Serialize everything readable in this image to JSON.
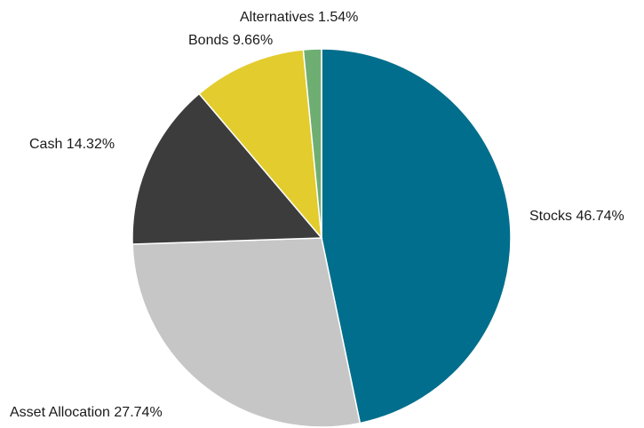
{
  "chart_data": {
    "type": "pie",
    "start_angle_deg": 0,
    "direction": "clockwise",
    "slices": [
      {
        "label": "Stocks",
        "value": 46.74,
        "label_text": "Stocks 46.74%",
        "color": "#006e8c",
        "label_side": "right"
      },
      {
        "label": "Asset Allocation",
        "value": 27.74,
        "label_text": "Asset Allocation 27.74%",
        "color": "#c6c6c6",
        "label_side": "left"
      },
      {
        "label": "Cash",
        "value": 14.32,
        "label_text": "Cash 14.32%",
        "color": "#3c3c3c",
        "label_side": "left"
      },
      {
        "label": "Bonds",
        "value": 9.66,
        "label_text": "Bonds 9.66%",
        "color": "#e3cc2e",
        "label_side": "left"
      },
      {
        "label": "Alternatives",
        "value": 1.54,
        "label_text": "Alternatives 1.54%",
        "color": "#6fae72",
        "label_side": "left"
      }
    ]
  }
}
